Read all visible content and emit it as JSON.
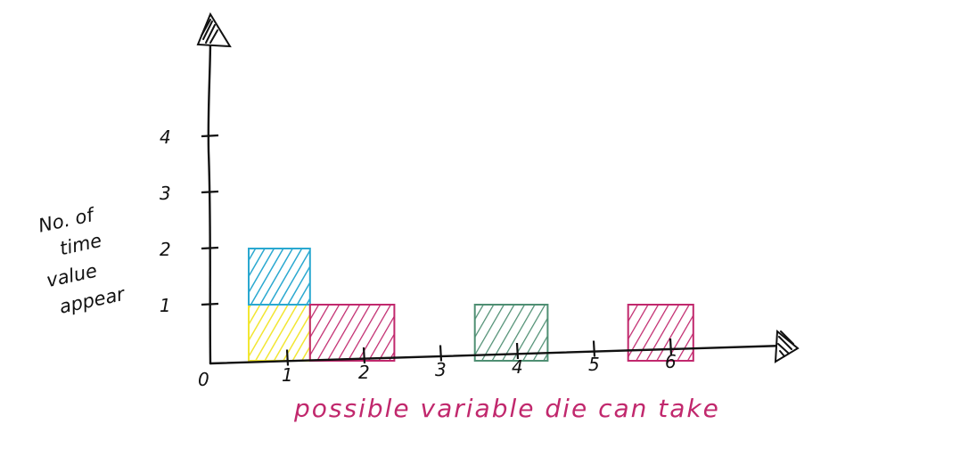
{
  "chart_data": {
    "type": "bar",
    "title": "",
    "xlabel": "possible variable die can take",
    "ylabel_lines": [
      "No. of",
      "time",
      "value",
      "appear"
    ],
    "x_ticks": [
      "0",
      "1",
      "2",
      "3",
      "4",
      "5",
      "6"
    ],
    "y_ticks": [
      "1",
      "2",
      "3",
      "4"
    ],
    "xlim": [
      0,
      6.5
    ],
    "ylim": [
      0,
      4.5
    ],
    "grid": false,
    "legend": "none",
    "bars": [
      {
        "x_start": 0.5,
        "x_end": 1.3,
        "y_start": 0,
        "y_end": 1,
        "color": "#f2e632"
      },
      {
        "x_start": 0.5,
        "x_end": 1.3,
        "y_start": 1,
        "y_end": 2,
        "color": "#2aa8d0"
      },
      {
        "x_start": 1.3,
        "x_end": 2.4,
        "y_start": 0,
        "y_end": 1,
        "color": "#c1286d"
      },
      {
        "x_start": 3.45,
        "x_end": 4.4,
        "y_start": 0,
        "y_end": 1,
        "color": "#4f8f73"
      },
      {
        "x_start": 5.45,
        "x_end": 6.3,
        "y_start": 0,
        "y_end": 1,
        "color": "#c1286d"
      }
    ],
    "colors": {
      "axis": "#111111",
      "xlabel": "#c1286d"
    }
  }
}
